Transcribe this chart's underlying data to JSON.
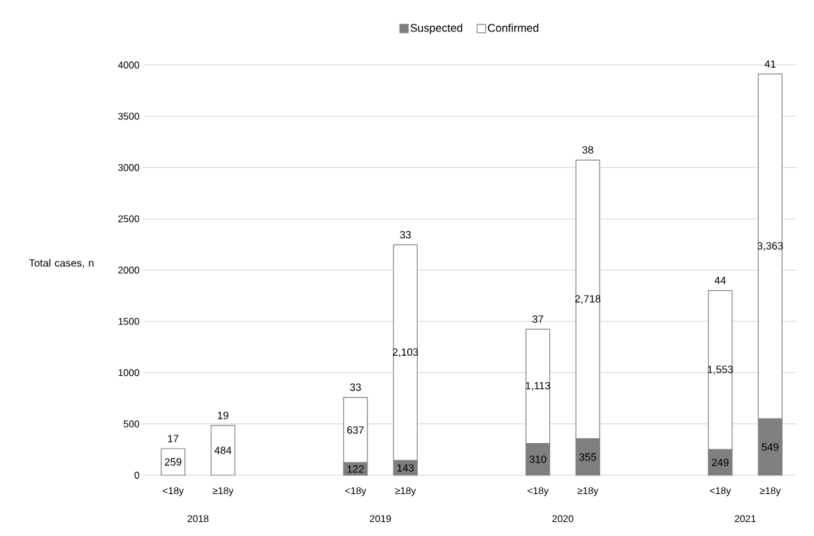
{
  "chart_data": {
    "type": "bar",
    "stacked": true,
    "ylabel": "Total cases, n",
    "categories": [
      "<18y",
      "≥18y",
      "<18y",
      "≥18y",
      "<18y",
      "≥18y",
      "<18y",
      "≥18y"
    ],
    "series": [
      {
        "name": "Suspected",
        "color": "#7f7f7f",
        "values": [
          0,
          0,
          122,
          143,
          310,
          355,
          249,
          549
        ],
        "value_labels": [
          null,
          null,
          "122",
          "143",
          "310",
          "355",
          "249",
          "549"
        ]
      },
      {
        "name": "Confirmed",
        "color": "#ffffff",
        "values": [
          259,
          484,
          637,
          2103,
          1113,
          2718,
          1553,
          3363
        ],
        "value_labels": [
          "259",
          "484",
          "637",
          "2,103",
          "1,113",
          "2,718",
          "1,553",
          "3,363"
        ]
      }
    ],
    "annotations": [
      "17",
      "19",
      "33",
      "33",
      "37",
      "38",
      "44",
      "41",
      "2018",
      "2019",
      "2020",
      "2021"
    ],
    "ylim": [
      0,
      4000
    ],
    "yticks": [
      0,
      500,
      1000,
      1500,
      2000,
      2500,
      3000,
      3500,
      4000
    ],
    "grid": "y",
    "legend": "top"
  }
}
